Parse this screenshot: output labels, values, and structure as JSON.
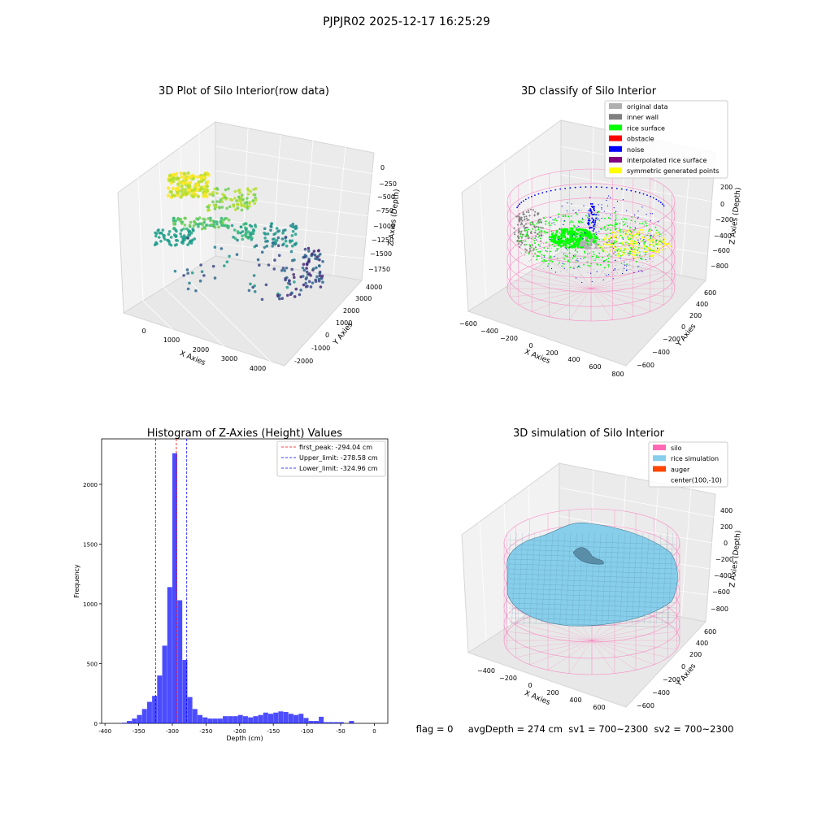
{
  "suptitle": "PJPJR02 2025-12-17 16:25:29",
  "chart_data": [
    {
      "type": "scatter",
      "title": "3D Plot of Silo Interior(row data)",
      "xlabel": "X Axies",
      "ylabel": "Y Axies",
      "zlabel": "Z Axies (Depth)",
      "x_ticks": [
        "0",
        "1000",
        "2000",
        "3000",
        "4000"
      ],
      "y_ticks": [
        "-2000",
        "-1000",
        "0",
        "1000",
        "2000",
        "3000",
        "4000"
      ],
      "z_ticks": [
        "0",
        "−250",
        "−500",
        "−750",
        "−1000",
        "−1250",
        "−1500",
        "−1750"
      ],
      "colormap": "viridis"
    },
    {
      "type": "scatter",
      "title": "3D classify of Silo Interior",
      "xlabel": "X Axies",
      "ylabel": "Y Axies",
      "zlabel": "Z Axies (Depth)",
      "x_ticks": [
        "−600",
        "−400",
        "−200",
        "0",
        "200",
        "400",
        "600",
        "800"
      ],
      "y_ticks": [
        "−600",
        "−400",
        "−200",
        "0",
        "200",
        "400",
        "600"
      ],
      "z_ticks": [
        "200",
        "0",
        "−200",
        "−400",
        "−600",
        "−800"
      ],
      "legend_position": "top-right",
      "legend": [
        {
          "label": "original data",
          "color": "#b0b0b0"
        },
        {
          "label": "inner wall",
          "color": "#808080"
        },
        {
          "label": "rice surface",
          "color": "#00ff00"
        },
        {
          "label": "obstacle",
          "color": "#ff0000"
        },
        {
          "label": "noise",
          "color": "#0000ff"
        },
        {
          "label": "interpolated rice surface",
          "color": "#800080"
        },
        {
          "label": "symmetric generated points",
          "color": "#ffff00"
        }
      ]
    },
    {
      "type": "bar",
      "title": "Histogram of Z-Axies (Height) Values",
      "xlabel": "Depth (cm)",
      "ylabel": "Frequency",
      "xlim": [
        -405,
        20
      ],
      "ylim": [
        0,
        2380
      ],
      "x_ticks": [
        -400,
        -350,
        -300,
        -250,
        -200,
        -150,
        -100,
        -50,
        0
      ],
      "y_ticks": [
        0,
        500,
        1000,
        1500,
        2000
      ],
      "bar_color": "#0000ff",
      "bins_start": -375,
      "bin_width": 7.5,
      "values": [
        5,
        20,
        40,
        70,
        120,
        180,
        230,
        400,
        650,
        1140,
        2260,
        1030,
        530,
        220,
        120,
        70,
        50,
        40,
        40,
        40,
        60,
        60,
        60,
        70,
        60,
        50,
        60,
        70,
        90,
        80,
        90,
        100,
        95,
        80,
        70,
        80,
        45,
        20,
        20,
        55,
        10,
        10,
        10,
        10,
        0,
        20
      ],
      "vlines": [
        {
          "x": -294.04,
          "label": "first_peak: -294.04 cm",
          "color": "#ff0000"
        },
        {
          "x": -278.58,
          "label": "Upper_limit: -278.58 cm",
          "color": "#0000ff"
        },
        {
          "x": -324.96,
          "label": "Lower_limit: -324.96 cm",
          "color": "#0000ff"
        }
      ],
      "legend_position": "top-right"
    },
    {
      "type": "surface",
      "title": "3D simulation of Silo Interior",
      "xlabel": "X Axies",
      "ylabel": "Y Axies",
      "zlabel": "Z Axies (Depth)",
      "x_ticks": [
        "−400",
        "−200",
        "0",
        "200",
        "400",
        "600"
      ],
      "y_ticks": [
        "−600",
        "−400",
        "−200",
        "0",
        "200",
        "400",
        "600"
      ],
      "z_ticks": [
        "400",
        "200",
        "0",
        "−200",
        "−400",
        "−600",
        "−800"
      ],
      "legend_position": "top-right",
      "legend": [
        {
          "label": "silo",
          "color": "#ff69b4"
        },
        {
          "label": "rice simulation",
          "color": "#87ceeb"
        },
        {
          "label": "auger",
          "color": "#ff4500"
        },
        {
          "label": "center(100,-10)",
          "color": ""
        }
      ]
    }
  ],
  "status_line": "flag = 0     avgDepth = 274 cm  sv1 = 700~2300  sv2 = 700~2300"
}
